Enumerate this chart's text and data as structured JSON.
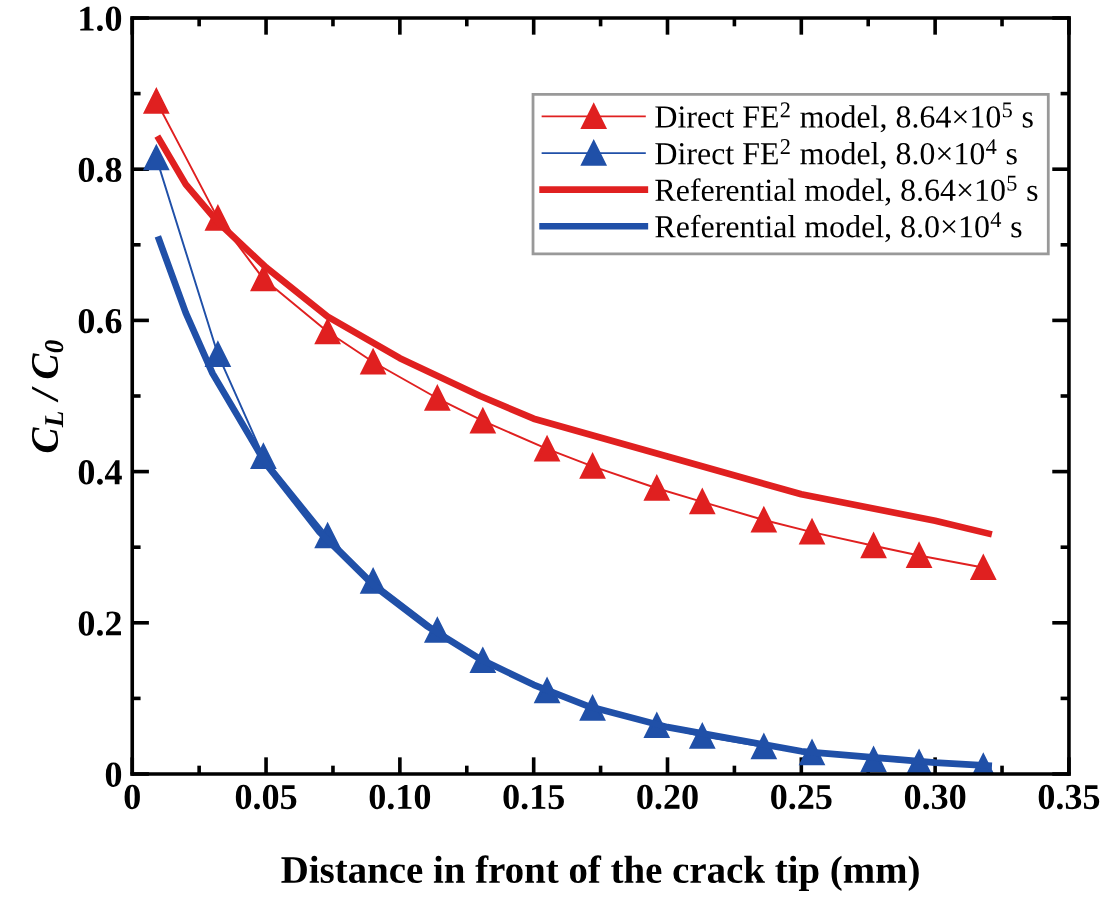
{
  "chart_data": {
    "type": "line",
    "xlabel": "Distance in front of the crack tip (mm)",
    "ylabel": "C$_{L}$ / C$_{0}$",
    "xlim": [
      0,
      0.35
    ],
    "ylim": [
      0,
      1.0
    ],
    "xticks": [
      {
        "value": 0,
        "label": "0"
      },
      0.05,
      {
        "value": 0.1,
        "label": "0.10"
      },
      0.15,
      {
        "value": 0.2,
        "label": "0.20"
      },
      0.25,
      {
        "value": 0.3,
        "label": "0.30"
      },
      0.35
    ],
    "yticks": [
      {
        "value": 0,
        "label": "0"
      },
      0.2,
      0.4,
      0.6,
      0.8,
      {
        "value": 1.0,
        "label": "1.0"
      }
    ],
    "grid": false,
    "legend": "top right",
    "series": [
      {
        "name": "Direct FE$^{2}$ model, 8.64×10$^{5}$ s",
        "color": "#e02020",
        "marker": "triangle",
        "x": [
          0.009,
          0.032,
          0.049,
          0.073,
          0.09,
          0.114,
          0.131,
          0.155,
          0.172,
          0.196,
          0.213,
          0.236,
          0.254,
          0.277,
          0.294,
          0.318
        ],
        "values": [
          0.89,
          0.735,
          0.655,
          0.585,
          0.545,
          0.497,
          0.467,
          0.43,
          0.407,
          0.378,
          0.36,
          0.336,
          0.32,
          0.302,
          0.289,
          0.273
        ]
      },
      {
        "name": "Direct FE$^{2}$ model, 8.0×10$^{4}$ s",
        "color": "#2050a8",
        "marker": "triangle",
        "x": [
          0.009,
          0.032,
          0.049,
          0.073,
          0.09,
          0.114,
          0.131,
          0.155,
          0.172,
          0.196,
          0.213,
          0.236,
          0.254,
          0.277,
          0.294,
          0.318
        ],
        "values": [
          0.815,
          0.555,
          0.42,
          0.315,
          0.255,
          0.19,
          0.15,
          0.11,
          0.087,
          0.064,
          0.05,
          0.036,
          0.028,
          0.019,
          0.015,
          0.01
        ]
      },
      {
        "name": "Referential model, 8.64×10$^{5}$ s",
        "color": "#e02020",
        "marker": "none",
        "x": [
          0.01,
          0.02,
          0.032,
          0.05,
          0.073,
          0.1,
          0.13,
          0.15,
          0.2,
          0.25,
          0.3,
          0.32
        ],
        "values": [
          0.84,
          0.78,
          0.73,
          0.67,
          0.605,
          0.55,
          0.5,
          0.47,
          0.42,
          0.37,
          0.335,
          0.318
        ]
      },
      {
        "name": "Referential model, 8.0×10$^{4}$ s",
        "color": "#2050a8",
        "marker": "none",
        "x": [
          0.01,
          0.02,
          0.03,
          0.05,
          0.07,
          0.09,
          0.11,
          0.13,
          0.15,
          0.17,
          0.2,
          0.25,
          0.3,
          0.32
        ],
        "values": [
          0.707,
          0.61,
          0.53,
          0.41,
          0.32,
          0.25,
          0.196,
          0.152,
          0.118,
          0.09,
          0.062,
          0.03,
          0.015,
          0.011
        ]
      }
    ]
  }
}
